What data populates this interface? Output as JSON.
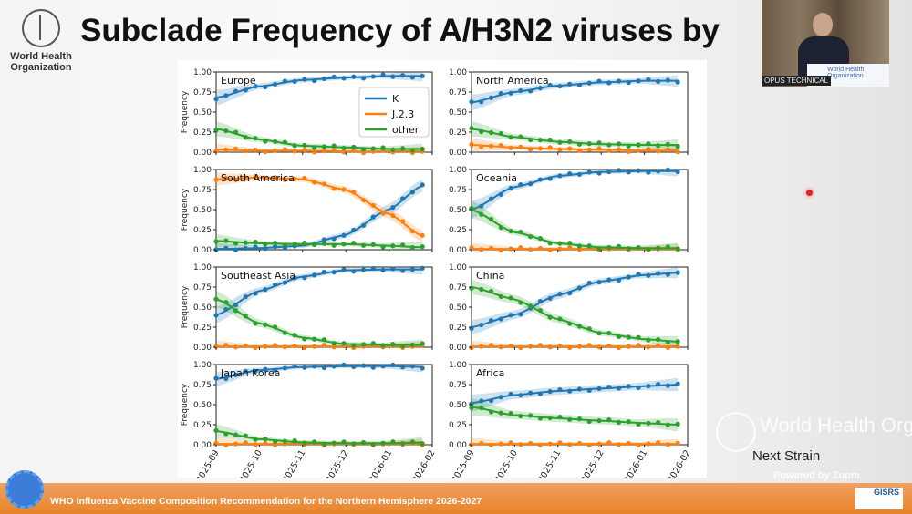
{
  "slide": {
    "title": "Subclade Frequency of A/H3N2 viruses by",
    "logo_text": "World Health Organization",
    "footer": "WHO Influenza Vaccine Composition Recommendation for the Northern Hemisphere 2026-2027",
    "footer_logo": "GISRS"
  },
  "video": {
    "label": "OPUS TECHNICAL",
    "podium_text": "World Health Organization"
  },
  "overlay": {
    "watermark": "World Health Organization",
    "caption": "Next Strain",
    "powered_by": "Powered by Zoom"
  },
  "colors": {
    "K": "#1f77b4",
    "J.2.3": "#ff7f0e",
    "other": "#2ca02c"
  },
  "chart_data": {
    "type": "line",
    "ylabel": "Frequency",
    "ylim": [
      0,
      1
    ],
    "yticks": [
      "0.00",
      "0.25",
      "0.50",
      "0.75",
      "1.00"
    ],
    "xticks": [
      "2025-09",
      "2025-10",
      "2025-11",
      "2025-12",
      "2026-01",
      "2026-02"
    ],
    "legend": {
      "placement": "upper-right of Europe panel",
      "entries": [
        "K",
        "J.2.3",
        "other"
      ]
    },
    "x": [
      "2025-09-01",
      "2025-10-01",
      "2025-11-01",
      "2025-12-01",
      "2026-01-01",
      "2026-01-25"
    ],
    "panels": [
      {
        "region": "Europe",
        "series": [
          {
            "name": "K",
            "values": [
              0.68,
              0.82,
              0.9,
              0.93,
              0.95,
              0.95
            ]
          },
          {
            "name": "J.2.3",
            "values": [
              0.03,
              0.02,
              0.02,
              0.01,
              0.01,
              0.01
            ]
          },
          {
            "name": "other",
            "values": [
              0.29,
              0.16,
              0.08,
              0.06,
              0.04,
              0.04
            ]
          }
        ]
      },
      {
        "region": "North America",
        "series": [
          {
            "name": "K",
            "values": [
              0.62,
              0.75,
              0.83,
              0.87,
              0.89,
              0.89
            ]
          },
          {
            "name": "J.2.3",
            "values": [
              0.09,
              0.06,
              0.04,
              0.03,
              0.02,
              0.02
            ]
          },
          {
            "name": "other",
            "values": [
              0.29,
              0.19,
              0.13,
              0.1,
              0.09,
              0.09
            ]
          }
        ]
      },
      {
        "region": "South America",
        "series": [
          {
            "name": "K",
            "values": [
              0.01,
              0.02,
              0.05,
              0.18,
              0.5,
              0.8
            ]
          },
          {
            "name": "J.2.3",
            "values": [
              0.88,
              0.9,
              0.88,
              0.75,
              0.45,
              0.17
            ]
          },
          {
            "name": "other",
            "values": [
              0.11,
              0.08,
              0.07,
              0.07,
              0.05,
              0.03
            ]
          }
        ]
      },
      {
        "region": "Oceania",
        "series": [
          {
            "name": "K",
            "values": [
              0.5,
              0.78,
              0.92,
              0.97,
              0.98,
              0.98
            ]
          },
          {
            "name": "J.2.3",
            "values": [
              0.01,
              0.01,
              0.01,
              0.01,
              0.01,
              0.01
            ]
          },
          {
            "name": "other",
            "values": [
              0.5,
              0.22,
              0.08,
              0.03,
              0.02,
              0.02
            ]
          }
        ]
      },
      {
        "region": "Southeast Asia",
        "series": [
          {
            "name": "K",
            "values": [
              0.4,
              0.7,
              0.88,
              0.96,
              0.97,
              0.97
            ]
          },
          {
            "name": "J.2.3",
            "values": [
              0.01,
              0.01,
              0.01,
              0.01,
              0.01,
              0.01
            ]
          },
          {
            "name": "other",
            "values": [
              0.6,
              0.3,
              0.12,
              0.04,
              0.03,
              0.03
            ]
          }
        ]
      },
      {
        "region": "China",
        "series": [
          {
            "name": "K",
            "values": [
              0.25,
              0.4,
              0.65,
              0.82,
              0.9,
              0.93
            ]
          },
          {
            "name": "J.2.3",
            "values": [
              0.01,
              0.01,
              0.01,
              0.01,
              0.01,
              0.01
            ]
          },
          {
            "name": "other",
            "values": [
              0.75,
              0.6,
              0.35,
              0.18,
              0.1,
              0.07
            ]
          }
        ]
      },
      {
        "region": "Japan Korea",
        "series": [
          {
            "name": "K",
            "values": [
              0.82,
              0.93,
              0.97,
              0.98,
              0.98,
              0.97
            ]
          },
          {
            "name": "J.2.3",
            "values": [
              0.01,
              0.01,
              0.01,
              0.01,
              0.01,
              0.01
            ]
          },
          {
            "name": "other",
            "values": [
              0.17,
              0.07,
              0.03,
              0.02,
              0.02,
              0.03
            ]
          }
        ]
      },
      {
        "region": "Africa",
        "series": [
          {
            "name": "K",
            "values": [
              0.52,
              0.62,
              0.67,
              0.7,
              0.73,
              0.75
            ]
          },
          {
            "name": "J.2.3",
            "values": [
              0.01,
              0.01,
              0.01,
              0.01,
              0.01,
              0.01
            ]
          },
          {
            "name": "other",
            "values": [
              0.47,
              0.37,
              0.33,
              0.3,
              0.27,
              0.25
            ]
          }
        ]
      }
    ]
  }
}
